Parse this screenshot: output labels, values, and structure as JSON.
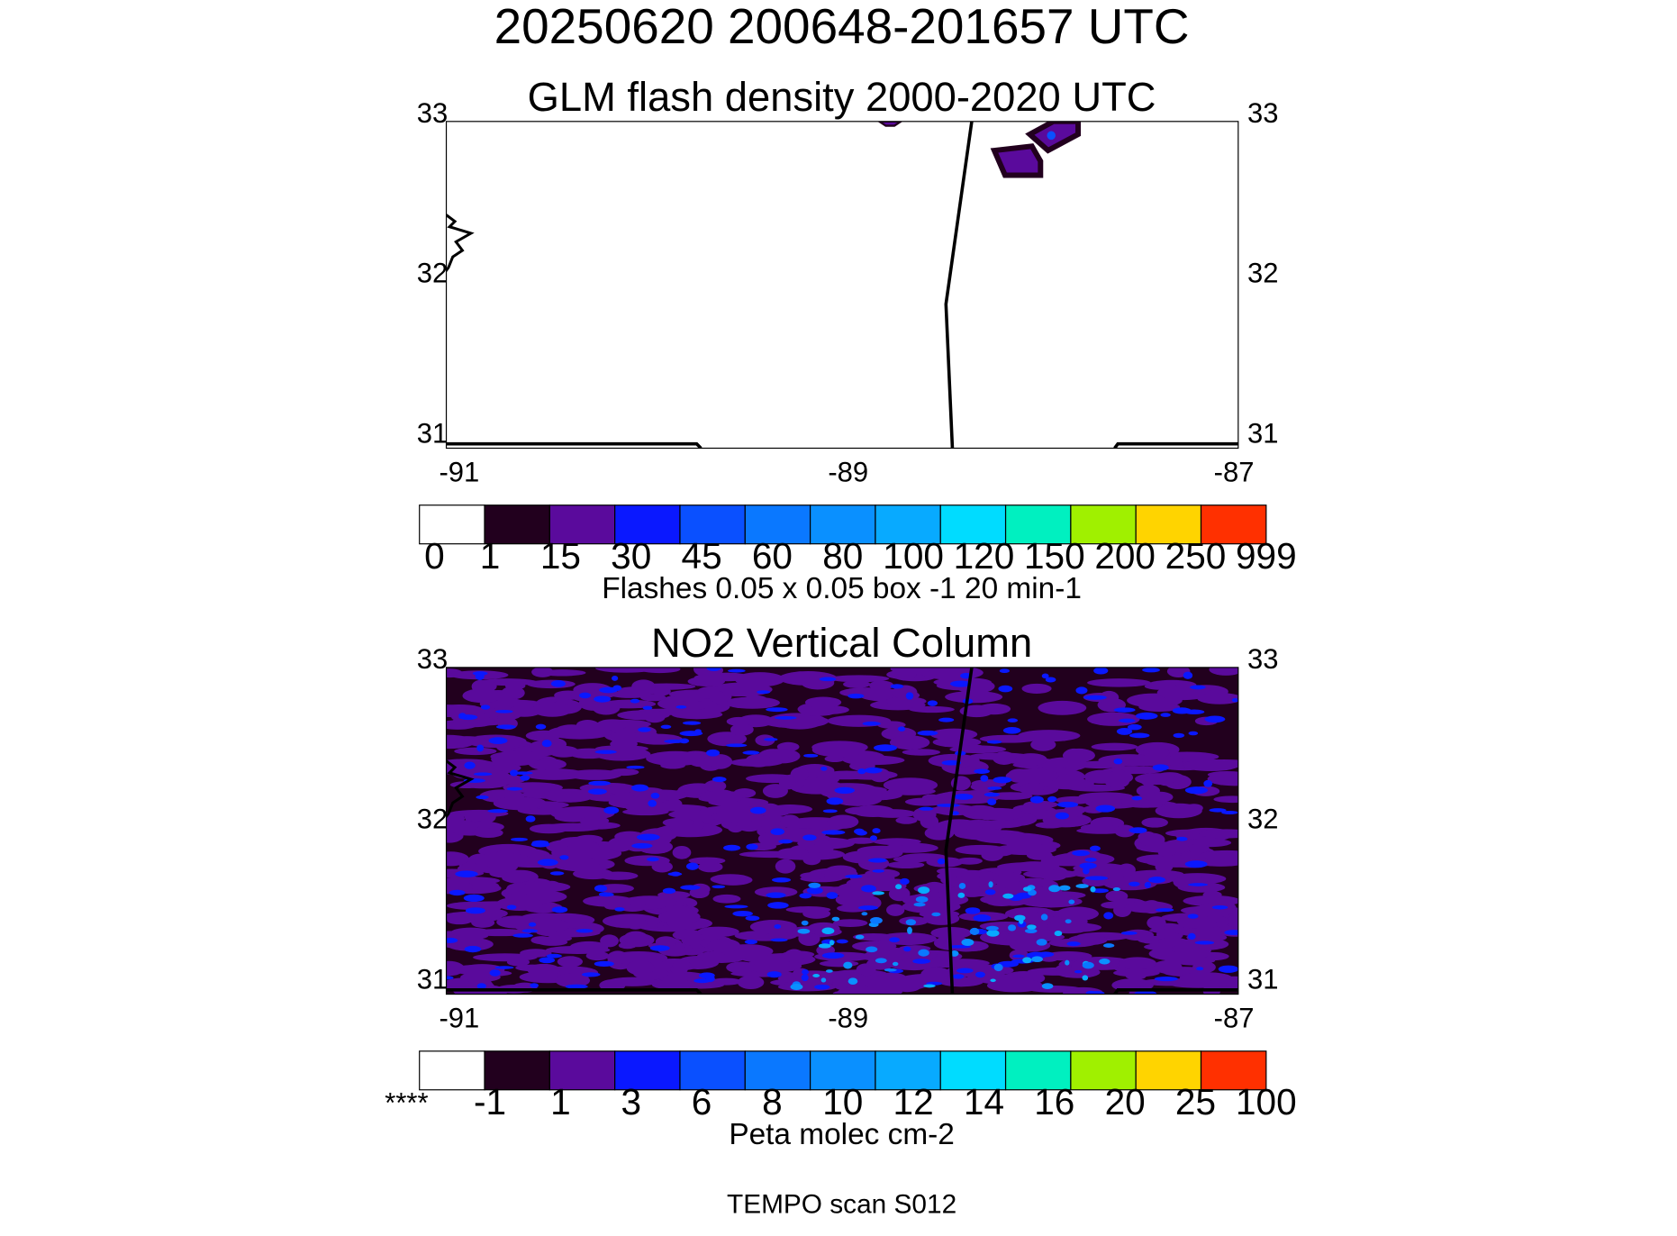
{
  "title": "20250620 200648-201657 UTC",
  "panels": [
    {
      "title": "GLM flash density 2000-2020 UTC",
      "lat_labels": [
        33,
        32,
        31
      ],
      "lon_labels": [
        -91,
        -89,
        -87
      ],
      "colorbar": {
        "labels": [
          0,
          1,
          15,
          30,
          45,
          60,
          80,
          100,
          120,
          150,
          200,
          250,
          999
        ],
        "colors": [
          "#ffffff",
          "#22001e",
          "#5a0a9c",
          "#0a18ff",
          "#0a50ff",
          "#0a78ff",
          "#0a90ff",
          "#08aaff",
          "#00dcff",
          "#00f0c0",
          "#a0f000",
          "#ffd400",
          "#ff3000"
        ],
        "units": "Flashes 0.05 x 0.05 box -1  20 min-1"
      }
    },
    {
      "title": "NO2 Vertical Column",
      "lat_labels": [
        33,
        32,
        31
      ],
      "lon_labels": [
        -91,
        -89,
        -87
      ],
      "colorbar": {
        "labels": [
          "****",
          -1,
          1,
          3,
          6,
          8,
          10,
          12,
          14,
          16,
          20,
          25,
          100
        ],
        "colors": [
          "#ffffff",
          "#22001e",
          "#5a0a9c",
          "#0a18ff",
          "#0a50ff",
          "#0a78ff",
          "#0a90ff",
          "#08aaff",
          "#00dcff",
          "#00f0c0",
          "#a0f000",
          "#ffd400",
          "#ff3000"
        ],
        "units": "Peta molec cm-2"
      }
    }
  ],
  "footer": "TEMPO scan S012"
}
